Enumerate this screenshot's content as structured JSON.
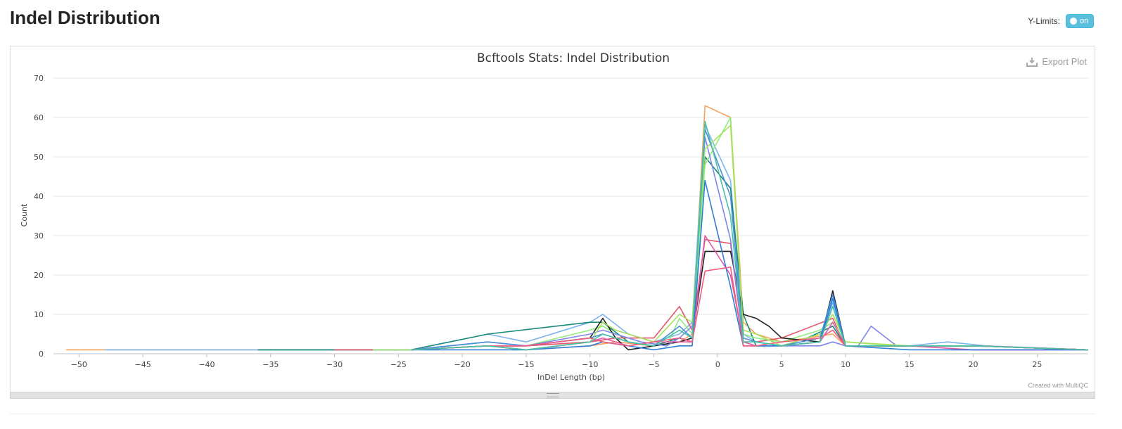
{
  "page": {
    "title": "Indel Distribution"
  },
  "controls": {
    "ylimits_label": "Y-Limits:",
    "toggle_label": "on",
    "export_label": "Export Plot",
    "credit": "Created with MultiQC"
  },
  "chart_data": {
    "type": "line",
    "title": "Bcftools Stats: Indel Distribution",
    "xlabel": "InDel Length (bp)",
    "ylabel": "Count",
    "xlim": [
      -52,
      29
    ],
    "ylim": [
      0,
      70
    ],
    "xticks": [
      -50,
      -45,
      -40,
      -35,
      -30,
      -25,
      -20,
      -15,
      -10,
      -5,
      0,
      5,
      10,
      15,
      20,
      25
    ],
    "yticks": [
      0,
      10,
      20,
      30,
      40,
      50,
      60,
      70
    ],
    "grid": true,
    "series": [
      {
        "color": "#f7a35c",
        "points": [
          [
            -51,
            1
          ],
          [
            -48,
            1
          ],
          [
            -27,
            1
          ],
          [
            -24,
            1
          ],
          [
            -18,
            2
          ],
          [
            -15,
            1
          ],
          [
            -10,
            2
          ],
          [
            -8,
            3
          ],
          [
            -5,
            2
          ],
          [
            -3,
            3
          ],
          [
            -2,
            5
          ],
          [
            -1,
            63
          ],
          [
            1,
            60
          ],
          [
            2,
            8
          ],
          [
            3,
            5
          ],
          [
            5,
            3
          ],
          [
            9,
            5
          ],
          [
            10,
            2
          ],
          [
            15,
            2
          ],
          [
            21,
            2
          ],
          [
            29,
            1
          ]
        ]
      },
      {
        "color": "#7cb5ec",
        "points": [
          [
            -48,
            1
          ],
          [
            -27,
            1
          ],
          [
            -24,
            1
          ],
          [
            -18,
            5
          ],
          [
            -15,
            3
          ],
          [
            -10,
            8
          ],
          [
            -9,
            10
          ],
          [
            -7,
            5
          ],
          [
            -5,
            3
          ],
          [
            -3,
            5
          ],
          [
            -2,
            8
          ],
          [
            -1,
            58
          ],
          [
            1,
            44
          ],
          [
            2,
            5
          ],
          [
            3,
            3
          ],
          [
            5,
            2
          ],
          [
            8,
            3
          ],
          [
            9,
            13
          ],
          [
            10,
            2
          ],
          [
            15,
            2
          ],
          [
            18,
            3
          ],
          [
            21,
            2
          ],
          [
            29,
            1
          ]
        ]
      },
      {
        "color": "#1b8a7a",
        "points": [
          [
            -36,
            1
          ],
          [
            -30,
            1
          ],
          [
            -24,
            1
          ],
          [
            -18,
            5
          ],
          [
            -10,
            8
          ],
          [
            -9,
            8
          ],
          [
            -7,
            3
          ],
          [
            -5,
            2
          ],
          [
            -3,
            4
          ],
          [
            -2,
            3
          ],
          [
            -1,
            50
          ],
          [
            1,
            42
          ],
          [
            2,
            10
          ],
          [
            3,
            2
          ],
          [
            5,
            2
          ],
          [
            7,
            4
          ],
          [
            9,
            7
          ],
          [
            10,
            2
          ],
          [
            15,
            2
          ],
          [
            20,
            2
          ],
          [
            29,
            1
          ]
        ]
      },
      {
        "color": "#e4566b",
        "points": [
          [
            -30,
            1
          ],
          [
            -27,
            1
          ],
          [
            -24,
            1
          ],
          [
            -18,
            2
          ],
          [
            -15,
            2
          ],
          [
            -10,
            3
          ],
          [
            -8,
            4
          ],
          [
            -5,
            4
          ],
          [
            -3,
            12
          ],
          [
            -2,
            6
          ],
          [
            -1,
            29
          ],
          [
            1,
            28
          ],
          [
            2,
            3
          ],
          [
            3,
            3
          ],
          [
            5,
            4
          ],
          [
            9,
            9
          ],
          [
            10,
            2
          ],
          [
            15,
            2
          ],
          [
            20,
            2
          ],
          [
            29,
            1
          ]
        ]
      },
      {
        "color": "#90ed7d",
        "points": [
          [
            -27,
            1
          ],
          [
            -24,
            1
          ],
          [
            -18,
            2
          ],
          [
            -15,
            2
          ],
          [
            -10,
            6
          ],
          [
            -9,
            7
          ],
          [
            -8,
            5
          ],
          [
            -6,
            3
          ],
          [
            -4,
            2
          ],
          [
            -3,
            9
          ],
          [
            -2,
            5
          ],
          [
            -1,
            48
          ],
          [
            1,
            60
          ],
          [
            2,
            5
          ],
          [
            3,
            4
          ],
          [
            5,
            3
          ],
          [
            8,
            6
          ],
          [
            9,
            8
          ],
          [
            10,
            3
          ],
          [
            14,
            2
          ],
          [
            20,
            2
          ],
          [
            29,
            1
          ]
        ]
      },
      {
        "color": "#222222",
        "points": [
          [
            -24,
            1
          ],
          [
            -18,
            2
          ],
          [
            -15,
            2
          ],
          [
            -10,
            4
          ],
          [
            -9,
            9
          ],
          [
            -8,
            4
          ],
          [
            -7,
            1
          ],
          [
            -5,
            2
          ],
          [
            -3,
            3
          ],
          [
            -2,
            4
          ],
          [
            -1,
            26
          ],
          [
            1,
            26
          ],
          [
            2,
            10
          ],
          [
            3,
            9
          ],
          [
            4,
            7
          ],
          [
            5,
            4
          ],
          [
            8,
            3
          ],
          [
            9,
            16
          ],
          [
            10,
            2
          ],
          [
            15,
            2
          ],
          [
            20,
            2
          ],
          [
            29,
            1
          ]
        ]
      },
      {
        "color": "#8085e9",
        "points": [
          [
            -24,
            1
          ],
          [
            -18,
            3
          ],
          [
            -15,
            2
          ],
          [
            -10,
            5
          ],
          [
            -9,
            6
          ],
          [
            -8,
            5
          ],
          [
            -6,
            3
          ],
          [
            -4,
            2
          ],
          [
            -3,
            4
          ],
          [
            -2,
            7
          ],
          [
            -1,
            55
          ],
          [
            1,
            29
          ],
          [
            2,
            3
          ],
          [
            3,
            3
          ],
          [
            5,
            2
          ],
          [
            8,
            2
          ],
          [
            9,
            3
          ],
          [
            10,
            2
          ],
          [
            11,
            2
          ],
          [
            12,
            7
          ],
          [
            14,
            2
          ],
          [
            20,
            2
          ],
          [
            29,
            1
          ]
        ]
      },
      {
        "color": "#a8e05a",
        "points": [
          [
            -24,
            1
          ],
          [
            -18,
            2
          ],
          [
            -15,
            1
          ],
          [
            -10,
            3
          ],
          [
            -9,
            8
          ],
          [
            -8,
            6
          ],
          [
            -6,
            4
          ],
          [
            -5,
            3
          ],
          [
            -3,
            10
          ],
          [
            -2,
            8
          ],
          [
            -1,
            52
          ],
          [
            1,
            58
          ],
          [
            2,
            6
          ],
          [
            3,
            5
          ],
          [
            5,
            2
          ],
          [
            8,
            5
          ],
          [
            9,
            10
          ],
          [
            10,
            3
          ],
          [
            15,
            2
          ],
          [
            20,
            2
          ],
          [
            29,
            1
          ]
        ]
      },
      {
        "color": "#4a90d9",
        "points": [
          [
            -24,
            1
          ],
          [
            -18,
            3
          ],
          [
            -15,
            2
          ],
          [
            -10,
            4
          ],
          [
            -9,
            5
          ],
          [
            -7,
            3
          ],
          [
            -5,
            2
          ],
          [
            -3,
            7
          ],
          [
            -2,
            4
          ],
          [
            -1,
            57
          ],
          [
            1,
            40
          ],
          [
            2,
            4
          ],
          [
            3,
            3
          ],
          [
            5,
            2
          ],
          [
            8,
            4
          ],
          [
            9,
            15
          ],
          [
            10,
            2
          ],
          [
            15,
            2
          ],
          [
            20,
            2
          ],
          [
            29,
            1
          ]
        ]
      },
      {
        "color": "#e05aa8",
        "points": [
          [
            -24,
            1
          ],
          [
            -18,
            2
          ],
          [
            -15,
            1
          ],
          [
            -10,
            3
          ],
          [
            -9,
            4
          ],
          [
            -7,
            2
          ],
          [
            -5,
            3
          ],
          [
            -3,
            3
          ],
          [
            -2,
            3
          ],
          [
            -1,
            30
          ],
          [
            1,
            20
          ],
          [
            2,
            3
          ],
          [
            3,
            2
          ],
          [
            5,
            2
          ],
          [
            8,
            3
          ],
          [
            9,
            8
          ],
          [
            10,
            2
          ],
          [
            15,
            2
          ],
          [
            20,
            1
          ],
          [
            29,
            1
          ]
        ]
      },
      {
        "color": "#2f7ed8",
        "points": [
          [
            -24,
            1
          ],
          [
            -18,
            1
          ],
          [
            -15,
            1
          ],
          [
            -10,
            2
          ],
          [
            -9,
            3
          ],
          [
            -7,
            2
          ],
          [
            -5,
            1
          ],
          [
            -3,
            2
          ],
          [
            -2,
            2
          ],
          [
            -1,
            44
          ],
          [
            1,
            17
          ],
          [
            2,
            2
          ],
          [
            3,
            2
          ],
          [
            5,
            2
          ],
          [
            8,
            3
          ],
          [
            9,
            14
          ],
          [
            10,
            2
          ],
          [
            15,
            1
          ],
          [
            20,
            1
          ],
          [
            29,
            1
          ]
        ]
      },
      {
        "color": "#f15c80",
        "points": [
          [
            -24,
            1
          ],
          [
            -18,
            2
          ],
          [
            -15,
            2
          ],
          [
            -10,
            4
          ],
          [
            -9,
            3
          ],
          [
            -7,
            2
          ],
          [
            -5,
            3
          ],
          [
            -3,
            4
          ],
          [
            -2,
            3
          ],
          [
            -1,
            21
          ],
          [
            1,
            22
          ],
          [
            2,
            2
          ],
          [
            3,
            2
          ],
          [
            5,
            3
          ],
          [
            8,
            4
          ],
          [
            9,
            6
          ],
          [
            10,
            2
          ],
          [
            15,
            2
          ],
          [
            20,
            2
          ],
          [
            29,
            1
          ]
        ]
      },
      {
        "color": "#4ac1a4",
        "points": [
          [
            -24,
            1
          ],
          [
            -18,
            2
          ],
          [
            -15,
            1
          ],
          [
            -10,
            3
          ],
          [
            -9,
            5
          ],
          [
            -7,
            3
          ],
          [
            -5,
            2
          ],
          [
            -3,
            6
          ],
          [
            -2,
            4
          ],
          [
            -1,
            59
          ],
          [
            1,
            35
          ],
          [
            2,
            3
          ],
          [
            3,
            3
          ],
          [
            5,
            2
          ],
          [
            8,
            3
          ],
          [
            9,
            12
          ],
          [
            10,
            2
          ],
          [
            15,
            2
          ],
          [
            20,
            2
          ],
          [
            29,
            1
          ]
        ]
      }
    ]
  }
}
